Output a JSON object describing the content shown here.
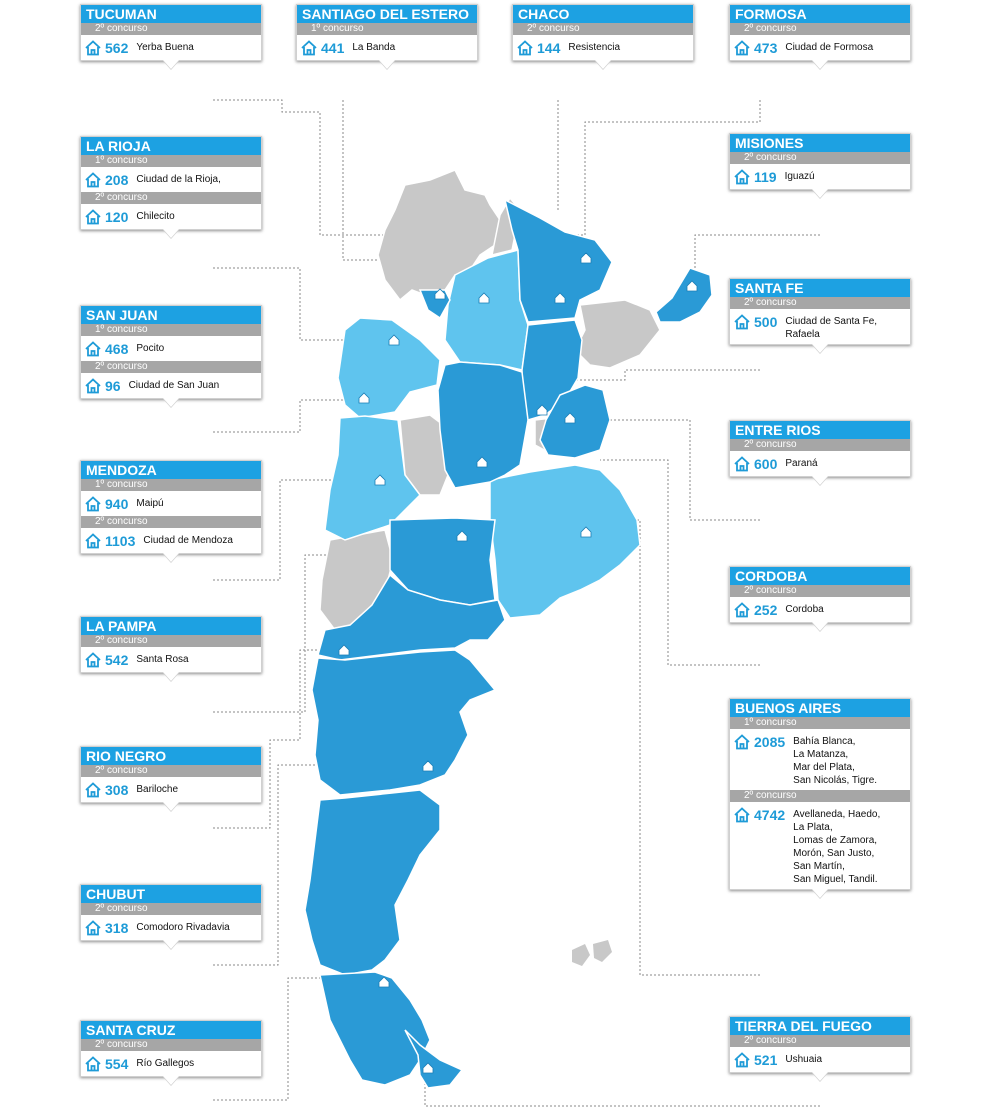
{
  "colors": {
    "dark_blue": "#2a9ad6",
    "light_blue": "#5fc4ee",
    "grey": "#c8c8c8",
    "header": "#1da1e2",
    "subheader": "#a6a6a6",
    "number": "#1e9bd7"
  },
  "icons": {
    "entry": "house-icon",
    "marker": "house-marker-icon",
    "islands": "malvinas-islands"
  },
  "provinces": [
    {
      "name": "TUCUMAN",
      "entries": [
        {
          "phase": "2º concurso",
          "count": "562",
          "cities": "Yerba Buena"
        }
      ]
    },
    {
      "name": "SANTIAGO DEL ESTERO",
      "entries": [
        {
          "phase": "1º concurso",
          "count": "441",
          "cities": "La Banda"
        }
      ]
    },
    {
      "name": "CHACO",
      "entries": [
        {
          "phase": "2º concurso",
          "count": "144",
          "cities": "Resistencia"
        }
      ]
    },
    {
      "name": "FORMOSA",
      "entries": [
        {
          "phase": "2º concurso",
          "count": "473",
          "cities": "Ciudad de Formosa"
        }
      ]
    },
    {
      "name": "LA RIOJA",
      "entries": [
        {
          "phase": "1º concurso",
          "count": "208",
          "cities": "Ciudad de la Rioja,"
        },
        {
          "phase": "2º concurso",
          "count": "120",
          "cities": "Chilecito"
        }
      ]
    },
    {
      "name": "MISIONES",
      "entries": [
        {
          "phase": "2º concurso",
          "count": "119",
          "cities": "Iguazú"
        }
      ]
    },
    {
      "name": "SAN JUAN",
      "entries": [
        {
          "phase": "1º concurso",
          "count": "468",
          "cities": "Pocito"
        },
        {
          "phase": "2º concurso",
          "count": "96",
          "cities": "Ciudad de San Juan"
        }
      ]
    },
    {
      "name": "SANTA FE",
      "entries": [
        {
          "phase": "2º concurso",
          "count": "500",
          "cities": "Ciudad de Santa Fe,\nRafaela"
        }
      ]
    },
    {
      "name": "ENTRE RIOS",
      "entries": [
        {
          "phase": "2º concurso",
          "count": "600",
          "cities": "Paraná"
        }
      ]
    },
    {
      "name": "MENDOZA",
      "entries": [
        {
          "phase": "1º concurso",
          "count": "940",
          "cities": "Maipú"
        },
        {
          "phase": "2º concurso",
          "count": "1103",
          "cities": "Ciudad de Mendoza"
        }
      ]
    },
    {
      "name": "CORDOBA",
      "entries": [
        {
          "phase": "2º concurso",
          "count": "252",
          "cities": "Cordoba"
        }
      ]
    },
    {
      "name": "LA PAMPA",
      "entries": [
        {
          "phase": "2º concurso",
          "count": "542",
          "cities": "Santa Rosa"
        }
      ]
    },
    {
      "name": "BUENOS AIRES",
      "entries": [
        {
          "phase": "1º concurso",
          "count": "2085",
          "cities": "Bahía Blanca,\nLa Matanza,\nMar del Plata,\nSan Nicolás, Tigre."
        },
        {
          "phase": "2º concurso",
          "count": "4742",
          "cities": "Avellaneda, Haedo,\nLa Plata,\nLomas de Zamora,\nMorón, San Justo,\nSan Martín,\nSan Miguel, Tandil."
        }
      ]
    },
    {
      "name": "RIO NEGRO",
      "entries": [
        {
          "phase": "2º concurso",
          "count": "308",
          "cities": "Bariloche"
        }
      ]
    },
    {
      "name": "CHUBUT",
      "entries": [
        {
          "phase": "2º concurso",
          "count": "318",
          "cities": "Comodoro Rivadavia"
        }
      ]
    },
    {
      "name": "SANTA CRUZ",
      "entries": [
        {
          "phase": "2º concurso",
          "count": "554",
          "cities": "Río Gallegos"
        }
      ]
    },
    {
      "name": "TIERRA DEL FUEGO",
      "entries": [
        {
          "phase": "2º concurso",
          "count": "521",
          "cities": "Ushuaia"
        }
      ]
    }
  ]
}
